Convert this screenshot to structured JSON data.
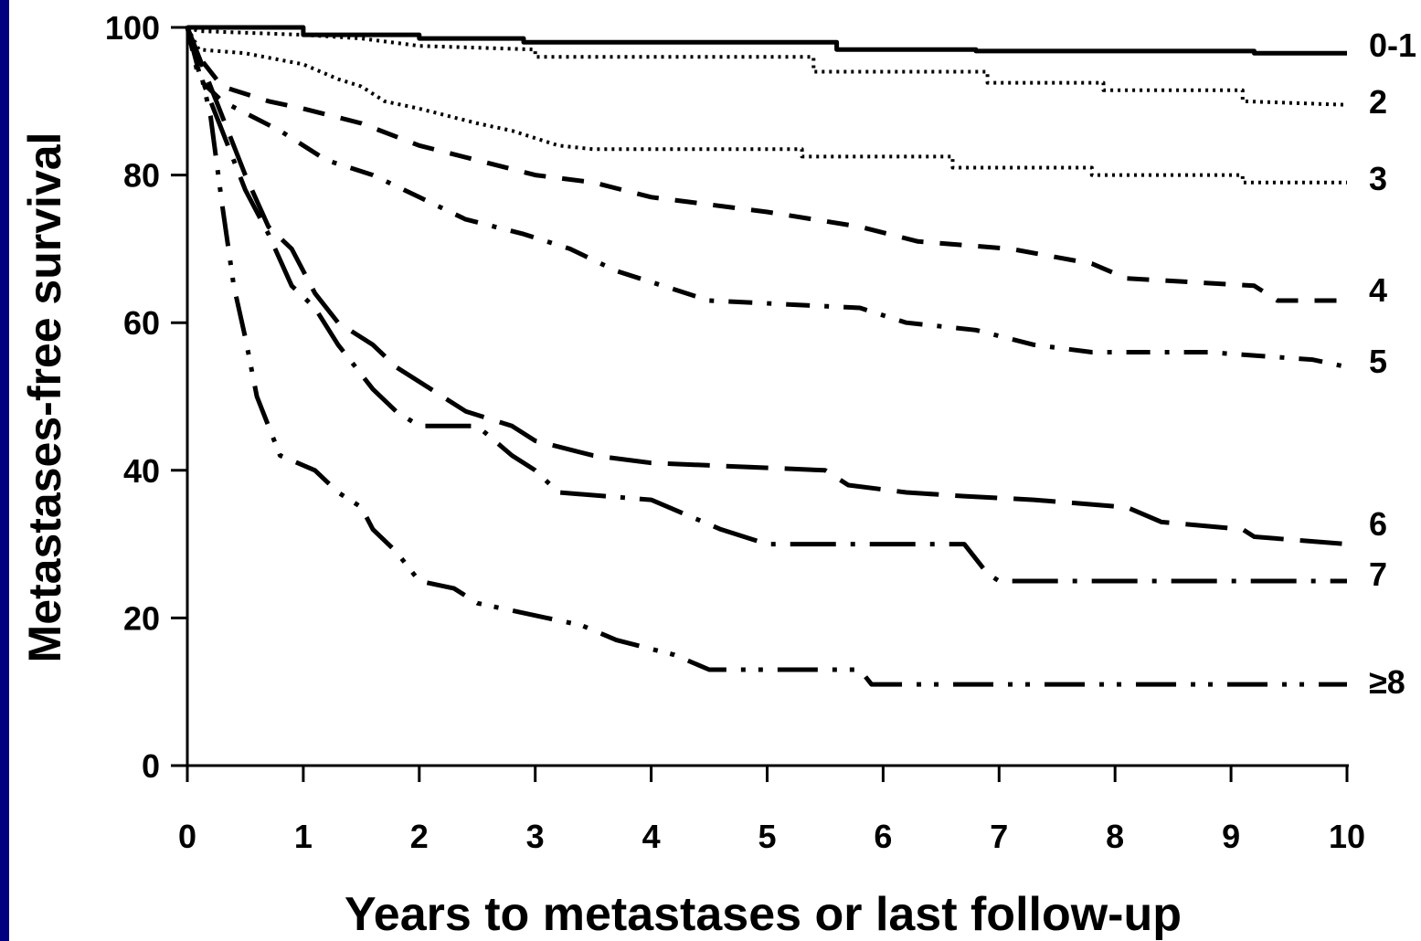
{
  "chart_data": {
    "type": "line",
    "title": "",
    "xlabel": "Years to metastases or last follow-up",
    "ylabel": "Metastases-free survival",
    "xlim": [
      0,
      10
    ],
    "ylim": [
      0,
      100
    ],
    "xticks": [
      0,
      1,
      2,
      3,
      4,
      5,
      6,
      7,
      8,
      9,
      10
    ],
    "yticks": [
      0,
      20,
      40,
      60,
      80,
      100
    ],
    "grid": false,
    "legend": "series labels at right end of each curve",
    "series": [
      {
        "name": "0-1",
        "dash": "solid",
        "points": [
          [
            0,
            100
          ],
          [
            1,
            100
          ],
          [
            1,
            99
          ],
          [
            2,
            99
          ],
          [
            2,
            98.5
          ],
          [
            2.9,
            98.5
          ],
          [
            2.9,
            98
          ],
          [
            5.6,
            98
          ],
          [
            5.6,
            97
          ],
          [
            6.8,
            97
          ],
          [
            6.8,
            96.8
          ],
          [
            9.2,
            96.8
          ],
          [
            9.2,
            96.5
          ],
          [
            10,
            96.5
          ]
        ]
      },
      {
        "name": "2",
        "dash": "dotted",
        "points": [
          [
            0,
            100
          ],
          [
            0.1,
            99.5
          ],
          [
            1,
            99
          ],
          [
            1.5,
            98.5
          ],
          [
            2,
            97.5
          ],
          [
            3,
            97
          ],
          [
            3,
            96
          ],
          [
            5.4,
            96
          ],
          [
            5.4,
            94
          ],
          [
            6.9,
            94
          ],
          [
            6.9,
            92.5
          ],
          [
            7.9,
            92.5
          ],
          [
            7.9,
            91.5
          ],
          [
            9.1,
            91.5
          ],
          [
            9.1,
            90
          ],
          [
            10,
            89.5
          ]
        ]
      },
      {
        "name": "3",
        "dash": "dotted",
        "points": [
          [
            0,
            100
          ],
          [
            0.1,
            97
          ],
          [
            0.5,
            96.5
          ],
          [
            1,
            95
          ],
          [
            1.3,
            93
          ],
          [
            1.5,
            92
          ],
          [
            1.7,
            90
          ],
          [
            2,
            89
          ],
          [
            2.5,
            87
          ],
          [
            2.8,
            86
          ],
          [
            3.2,
            84
          ],
          [
            3.5,
            83.5
          ],
          [
            5.3,
            83.5
          ],
          [
            5.3,
            82.5
          ],
          [
            6.6,
            82.5
          ],
          [
            6.6,
            81
          ],
          [
            7.8,
            81
          ],
          [
            7.8,
            80
          ],
          [
            9.1,
            80
          ],
          [
            9.1,
            79
          ],
          [
            10,
            79
          ]
        ]
      },
      {
        "name": "4",
        "dash": "dashed",
        "points": [
          [
            0,
            100
          ],
          [
            0.1,
            96
          ],
          [
            0.3,
            92
          ],
          [
            0.7,
            90
          ],
          [
            1,
            89
          ],
          [
            1.5,
            87
          ],
          [
            2,
            84
          ],
          [
            2.5,
            82
          ],
          [
            3,
            80
          ],
          [
            3.5,
            79
          ],
          [
            4,
            77
          ],
          [
            5,
            75
          ],
          [
            5.8,
            73
          ],
          [
            6.3,
            71
          ],
          [
            7.1,
            70
          ],
          [
            7.8,
            68
          ],
          [
            8.1,
            66
          ],
          [
            9.2,
            65
          ],
          [
            9.4,
            63
          ],
          [
            10,
            63
          ]
        ]
      },
      {
        "name": "5",
        "dash": "dashdot",
        "points": [
          [
            0,
            100
          ],
          [
            0.1,
            93
          ],
          [
            0.3,
            90
          ],
          [
            0.8,
            86
          ],
          [
            1.2,
            82
          ],
          [
            1.6,
            80
          ],
          [
            2,
            77
          ],
          [
            2.4,
            74
          ],
          [
            2.9,
            72
          ],
          [
            3.3,
            70
          ],
          [
            3.7,
            67
          ],
          [
            4.1,
            65
          ],
          [
            4.5,
            63
          ],
          [
            5.8,
            62
          ],
          [
            6.2,
            60
          ],
          [
            6.8,
            59
          ],
          [
            7.3,
            57
          ],
          [
            7.8,
            56
          ],
          [
            8.8,
            56
          ],
          [
            9.7,
            55
          ],
          [
            10,
            54
          ]
        ]
      },
      {
        "name": "6",
        "dash": "longdash",
        "points": [
          [
            0,
            100
          ],
          [
            0.1,
            96
          ],
          [
            0.3,
            88
          ],
          [
            0.5,
            80
          ],
          [
            0.7,
            73
          ],
          [
            0.9,
            70
          ],
          [
            1.1,
            64
          ],
          [
            1.3,
            60
          ],
          [
            1.6,
            57
          ],
          [
            1.8,
            54
          ],
          [
            2.1,
            51
          ],
          [
            2.4,
            48
          ],
          [
            2.8,
            46
          ],
          [
            3,
            44
          ],
          [
            3.5,
            42
          ],
          [
            4,
            41
          ],
          [
            5.5,
            40
          ],
          [
            5.7,
            38
          ],
          [
            6.2,
            37
          ],
          [
            6.7,
            36.5
          ],
          [
            7.3,
            36
          ],
          [
            8.1,
            35
          ],
          [
            8.4,
            33
          ],
          [
            9.1,
            32
          ],
          [
            9.2,
            31
          ],
          [
            10,
            30
          ]
        ]
      },
      {
        "name": "7",
        "dash": "longdashdot",
        "points": [
          [
            0,
            100
          ],
          [
            0.1,
            94
          ],
          [
            0.3,
            86
          ],
          [
            0.5,
            78
          ],
          [
            0.7,
            72
          ],
          [
            0.9,
            65
          ],
          [
            1.1,
            62
          ],
          [
            1.3,
            57
          ],
          [
            1.6,
            51
          ],
          [
            1.8,
            48
          ],
          [
            2,
            46
          ],
          [
            2.5,
            46
          ],
          [
            2.8,
            42
          ],
          [
            3,
            40
          ],
          [
            3.2,
            37
          ],
          [
            4,
            36
          ],
          [
            4.6,
            32
          ],
          [
            5,
            30
          ],
          [
            6.7,
            30
          ],
          [
            6.9,
            26
          ],
          [
            7,
            25
          ],
          [
            10,
            25
          ]
        ]
      },
      {
        "name": "≥8",
        "dash": "longdashdotdot",
        "points": [
          [
            0,
            100
          ],
          [
            0.1,
            95
          ],
          [
            0.2,
            88
          ],
          [
            0.3,
            76
          ],
          [
            0.4,
            65
          ],
          [
            0.5,
            58
          ],
          [
            0.6,
            50
          ],
          [
            0.7,
            46
          ],
          [
            0.8,
            42
          ],
          [
            1.1,
            40
          ],
          [
            1.3,
            37
          ],
          [
            1.5,
            35
          ],
          [
            1.6,
            32
          ],
          [
            1.8,
            29
          ],
          [
            2,
            25
          ],
          [
            2.3,
            24
          ],
          [
            2.5,
            22
          ],
          [
            2.8,
            21
          ],
          [
            3.1,
            20
          ],
          [
            3.4,
            19
          ],
          [
            3.7,
            17
          ],
          [
            4.2,
            15
          ],
          [
            4.5,
            13
          ],
          [
            5.8,
            13
          ],
          [
            5.9,
            11
          ],
          [
            10,
            11
          ]
        ]
      }
    ]
  }
}
